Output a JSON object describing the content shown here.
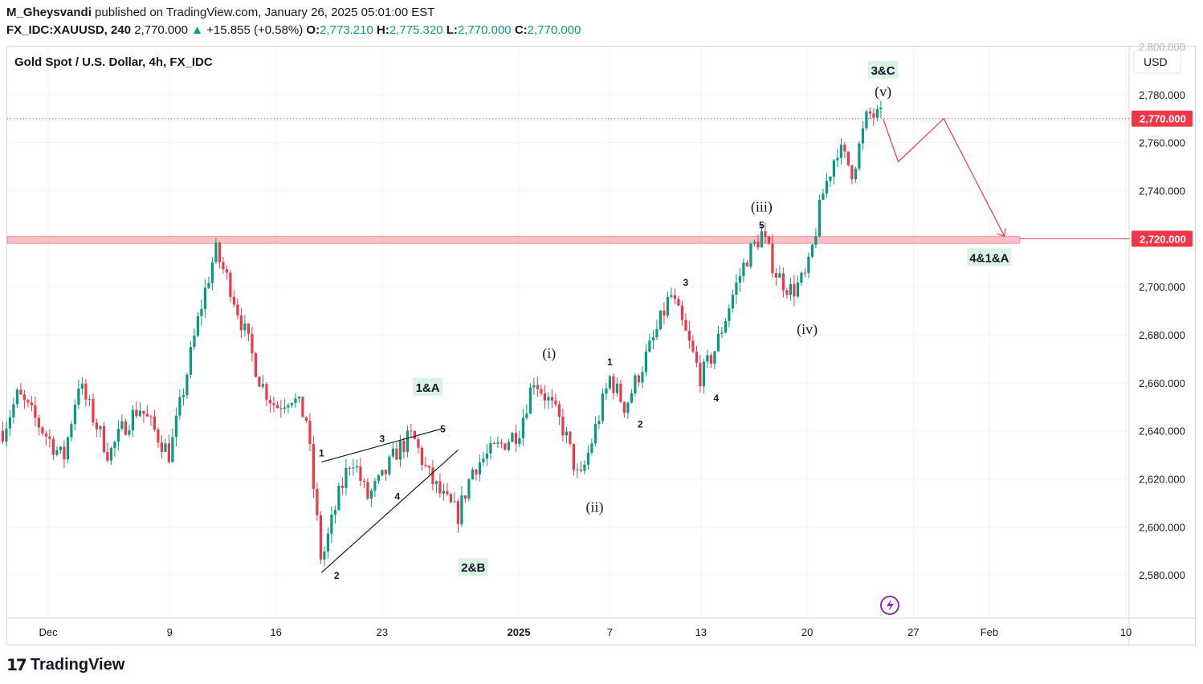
{
  "header": {
    "author": "M_Gheysvandi",
    "published": "published on TradingView.com, January 26, 2025 05:01:00 EST",
    "symbol": "FX_IDC:XAUUSD, 240",
    "last": "2,770.000",
    "change": "+15.855 (+0.58%)",
    "open_label": "O:",
    "open": "2,773.210",
    "high_label": "H:",
    "high": "2,775.320",
    "low_label": "L:",
    "low": "2,770.000",
    "close_label": "C:",
    "close": "2,770.000"
  },
  "pane": {
    "title": "Gold Spot / U.S. Dollar, 4h, FX_IDC",
    "currency": "USD"
  },
  "footer": {
    "brand": "TradingView"
  },
  "colors": {
    "up": "#089981",
    "down": "#f23645",
    "zone": "#f7a5ad",
    "projection": "#f23645",
    "grid": "#f0f3fa"
  },
  "chart_data": {
    "type": "candlestick",
    "title": "Gold Spot / U.S. Dollar, 4h, FX_IDC",
    "ylim": [
      2562,
      2800
    ],
    "y_ticks": [
      "2,580.000",
      "2,600.000",
      "2,620.000",
      "2,640.000",
      "2,660.000",
      "2,680.000",
      "2,700.000",
      "2,720.000",
      "2,740.000",
      "2,760.000",
      "2,780.000",
      "2,800.000"
    ],
    "x_ticks": [
      "Dec",
      "9",
      "16",
      "23",
      "2025",
      "7",
      "13",
      "20",
      "27",
      "Feb",
      "10"
    ],
    "price_labels": [
      {
        "value": 2770,
        "text": "2,770.000"
      },
      {
        "value": 2720,
        "text": "2,720.000"
      }
    ],
    "resistance_zone": [
      2718,
      2721
    ],
    "close_path": [
      [
        "Nov 28",
        2640
      ],
      [
        "Nov 29",
        2655
      ],
      [
        "Dec 2",
        2628
      ],
      [
        "Dec 3",
        2660
      ],
      [
        "Dec 4",
        2645
      ],
      [
        "Dec 5",
        2630
      ],
      [
        "Dec 6",
        2642
      ],
      [
        "Dec 7",
        2650
      ],
      [
        "Dec 9",
        2630
      ],
      [
        "Dec 10",
        2660
      ],
      [
        "Dec 11",
        2690
      ],
      [
        "Dec 12",
        2715
      ],
      [
        "Dec 13",
        2700
      ],
      [
        "Dec 14",
        2680
      ],
      [
        "Dec 15",
        2660
      ],
      [
        "Dec 16",
        2650
      ],
      [
        "Dec 17",
        2655
      ],
      [
        "Dec 18",
        2645
      ],
      [
        "Dec 19",
        2585
      ],
      [
        "Dec 20",
        2610
      ],
      [
        "Dec 21",
        2630
      ],
      [
        "Dec 22",
        2612
      ],
      [
        "Dec 23",
        2620
      ],
      [
        "Dec 24",
        2632
      ],
      [
        "Dec 25",
        2638
      ],
      [
        "Dec 26",
        2622
      ],
      [
        "Dec 27",
        2612
      ],
      [
        "Dec 28",
        2605
      ],
      [
        "Dec 29",
        2625
      ],
      [
        "Jan 1",
        2640
      ],
      [
        "Jan 2",
        2662
      ],
      [
        "Jan 3",
        2652
      ],
      [
        "Jan 4",
        2640
      ],
      [
        "Jan 5",
        2618
      ],
      [
        "Jan 6",
        2640
      ],
      [
        "Jan 7",
        2662
      ],
      [
        "Jan 8",
        2650
      ],
      [
        "Jan 9",
        2665
      ],
      [
        "Jan 10",
        2680
      ],
      [
        "Jan 11",
        2697
      ],
      [
        "Jan 12",
        2680
      ],
      [
        "Jan 13",
        2662
      ],
      [
        "Jan 14",
        2675
      ],
      [
        "Jan 15",
        2695
      ],
      [
        "Jan 16",
        2712
      ],
      [
        "Jan 17",
        2722
      ],
      [
        "Jan 18",
        2705
      ],
      [
        "Jan 19",
        2698
      ],
      [
        "Jan 20",
        2705
      ],
      [
        "Jan 21",
        2738
      ],
      [
        "Jan 22",
        2758
      ],
      [
        "Jan 23",
        2748
      ],
      [
        "Jan 24",
        2772
      ],
      [
        "Jan 25",
        2770
      ]
    ],
    "projection": [
      [
        "Jan 25",
        2770
      ],
      [
        "Jan 26",
        2752
      ],
      [
        "Jan 29",
        2770
      ],
      [
        "Feb 2",
        2721
      ]
    ],
    "wave_labels": [
      {
        "text": "3&C",
        "x": "Jan 25",
        "y": 2790,
        "boxed": true
      },
      {
        "text": "(v)",
        "x": "Jan 25",
        "y": 2781,
        "boxed": false
      },
      {
        "text": "(iii)",
        "x": "Jan 17",
        "y": 2733,
        "boxed": false
      },
      {
        "text": "5",
        "x": "Jan 17",
        "y": 2726,
        "boxed": false
      },
      {
        "text": "4&1&A",
        "x": "Feb 1",
        "y": 2712,
        "boxed": true
      },
      {
        "text": "3",
        "x": "Jan 12",
        "y": 2702,
        "boxed": false
      },
      {
        "text": "(iv)",
        "x": "Jan 20",
        "y": 2682,
        "boxed": false
      },
      {
        "text": "(i)",
        "x": "Jan 3",
        "y": 2672,
        "boxed": false
      },
      {
        "text": "1",
        "x": "Jan 7",
        "y": 2669,
        "boxed": false
      },
      {
        "text": "4",
        "x": "Jan 14",
        "y": 2654,
        "boxed": false
      },
      {
        "text": "1&A",
        "x": "Dec 26",
        "y": 2658,
        "boxed": true
      },
      {
        "text": "2",
        "x": "Jan 9",
        "y": 2643,
        "boxed": false
      },
      {
        "text": "3",
        "x": "Dec 23",
        "y": 2637,
        "boxed": false
      },
      {
        "text": "5",
        "x": "Dec 27",
        "y": 2641,
        "boxed": false
      },
      {
        "text": "1",
        "x": "Dec 19",
        "y": 2631,
        "boxed": false
      },
      {
        "text": "4",
        "x": "Dec 24",
        "y": 2613,
        "boxed": false
      },
      {
        "text": "(ii)",
        "x": "Jan 6",
        "y": 2608,
        "boxed": false
      },
      {
        "text": "2",
        "x": "Dec 20",
        "y": 2580,
        "boxed": false
      },
      {
        "text": "2&B",
        "x": "Dec 29",
        "y": 2583,
        "boxed": true
      }
    ]
  }
}
